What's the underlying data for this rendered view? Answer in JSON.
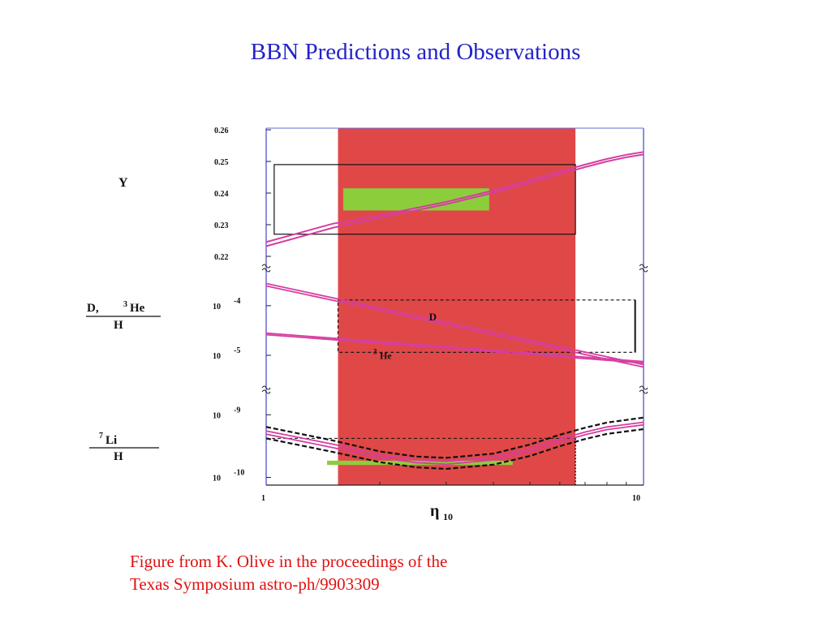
{
  "slide": {
    "title": "BBN Predictions and Observations",
    "caption_line1": "Figure from K. Olive in the proceedings of  the",
    "caption_line2": "Texas Symposium astro-ph/9903309"
  },
  "colors": {
    "title": "#2323c8",
    "caption": "#e01010",
    "band": "#e04848",
    "green": "#8ccd3c",
    "curve": "#d63ea0",
    "axis": "#6a6ad8"
  },
  "chart_data": {
    "type": "line",
    "x_scale": "log",
    "xlim": [
      1,
      10
    ],
    "xlabel_main": "η",
    "xlabel_sub": "10",
    "x_ticks": [
      "1",
      "10"
    ],
    "allowed_eta_range": [
      1.55,
      6.6
    ],
    "panels": [
      {
        "id": "Y",
        "ylabel": "Y",
        "ylim": [
          0.22,
          0.26
        ],
        "y_ticks": [
          "0.26",
          "0.25",
          "0.24",
          "0.23",
          "0.22"
        ],
        "y_tick_values": [
          0.26,
          0.25,
          0.24,
          0.23,
          0.22
        ],
        "series": [
          {
            "x": [
              1,
              1.5,
              2,
              3,
              4,
              5,
              6,
              7,
              8,
              9,
              10
            ],
            "y": [
              0.2245,
              0.2303,
              0.233,
              0.2372,
              0.2408,
              0.244,
              0.2468,
              0.249,
              0.2508,
              0.2521,
              0.253
            ]
          },
          {
            "x": [
              1,
              1.5,
              2,
              3,
              4,
              5,
              6,
              7,
              8,
              9,
              10
            ],
            "y": [
              0.2232,
              0.229,
              0.2322,
              0.2365,
              0.2401,
              0.2432,
              0.246,
              0.2482,
              0.25,
              0.2513,
              0.2522
            ]
          }
        ],
        "observed_box": {
          "x": [
            1.6,
            3.9
          ],
          "y": [
            0.2345,
            0.2415
          ]
        },
        "outline_box": {
          "x": [
            1.05,
            6.6
          ],
          "y": [
            0.227,
            0.249
          ]
        }
      },
      {
        "id": "D_He3",
        "ylabel_line1": "D,  ",
        "ylabel_sup": "3",
        "ylabel_line1b": "He",
        "ylabel_line2": "H",
        "y_scale": "log",
        "ylim": [
          3e-06,
          0.0004
        ],
        "y_ticks": [
          {
            "base": "10",
            "exp": "-4",
            "value": 0.0001
          },
          {
            "base": "10",
            "exp": "-5",
            "value": 1e-05
          }
        ],
        "series": [
          {
            "name": "D",
            "x": [
              1,
              10
            ],
            "y": [
              0.00028,
              6.5e-06
            ]
          },
          {
            "name": "D",
            "x": [
              1,
              10
            ],
            "y": [
              0.00025,
              5.8e-06
            ]
          },
          {
            "name": "3He",
            "x": [
              1,
              10
            ],
            "y": [
              2.8e-05,
              7.5e-06
            ]
          },
          {
            "name": "3He",
            "x": [
              1,
              10
            ],
            "y": [
              2.6e-05,
              7e-06
            ]
          }
        ],
        "annotations": [
          {
            "text": "D",
            "x": 2.7,
            "y": 5e-05
          },
          {
            "text": "He",
            "sup": "3",
            "x": 2.0,
            "y": 8.5e-06
          }
        ],
        "dashed_box": {
          "x": [
            1.55,
            9.5
          ],
          "y": [
            1.15e-05,
            0.00013
          ]
        }
      },
      {
        "id": "Li7",
        "ylabel_sup": "7",
        "ylabel_line1": "Li",
        "ylabel_line2": "H",
        "y_scale": "log",
        "ylim": [
          8e-11,
          1.4e-09
        ],
        "y_ticks": [
          {
            "base": "10",
            "exp": "-9",
            "value": 1e-09
          },
          {
            "base": "10",
            "exp": "-10",
            "value": 1e-10
          }
        ],
        "series": [
          {
            "x": [
              1,
              1.5,
              2,
              2.5,
              3,
              4,
              5,
              6,
              7,
              8,
              10
            ],
            "y": [
              5.5e-10,
              3.4e-10,
              2.3e-10,
              1.9e-10,
              1.8e-10,
              2.1e-10,
              2.9e-10,
              4.1e-10,
              5.3e-10,
              6.4e-10,
              7.6e-10
            ]
          },
          {
            "x": [
              1,
              1.5,
              2,
              2.5,
              3,
              4,
              5,
              6,
              7,
              8,
              10
            ],
            "y": [
              4.9e-10,
              3e-10,
              2.05e-10,
              1.72e-10,
              1.62e-10,
              1.9e-10,
              2.6e-10,
              3.7e-10,
              4.8e-10,
              5.8e-10,
              6.9e-10
            ]
          }
        ],
        "dashed_bounds": [
          {
            "x": [
              1,
              1.5,
              2,
              2.5,
              3,
              4,
              5,
              6,
              7,
              8,
              10
            ],
            "y": [
              6.4e-10,
              3.9e-10,
              2.6e-10,
              2.15e-10,
              2.05e-10,
              2.4e-10,
              3.35e-10,
              4.8e-10,
              6.2e-10,
              7.5e-10,
              9e-10
            ]
          },
          {
            "x": [
              1,
              1.5,
              2,
              2.5,
              3,
              4,
              5,
              6,
              7,
              8,
              10
            ],
            "y": [
              4.2e-10,
              2.55e-10,
              1.75e-10,
              1.45e-10,
              1.37e-10,
              1.6e-10,
              2.2e-10,
              3.15e-10,
              4.1e-10,
              4.95e-10,
              5.9e-10
            ]
          }
        ],
        "observed_box": {
          "x": [
            1.45,
            4.5
          ],
          "y": [
            1.58e-10,
            1.85e-10
          ]
        },
        "dashed_level": {
          "x": [
            1,
            6.6
          ],
          "y": 4.2e-10
        }
      }
    ]
  }
}
